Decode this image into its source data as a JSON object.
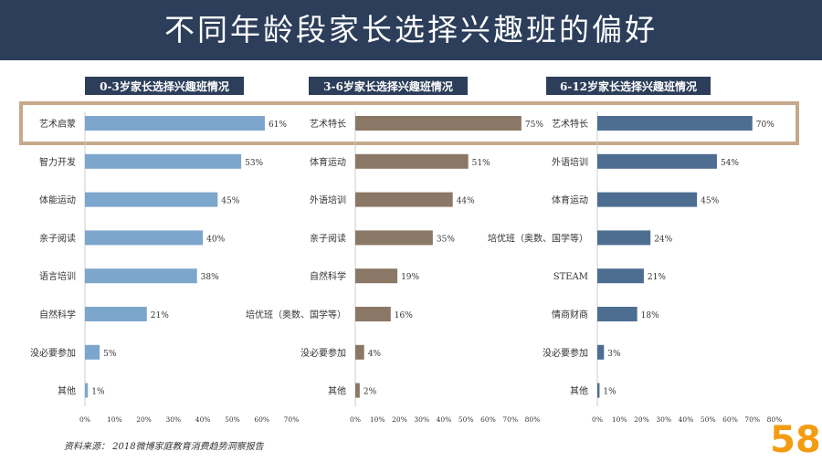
{
  "title": "不同年龄段家长选择兴趣班的偏好",
  "source": "资料来源： 2018微博家庭教育消费趋势洞察报告",
  "logo_text": "58",
  "colors": {
    "highlight": "#c6a98a",
    "axis_line": "#cccccc",
    "text": "#333333",
    "panel_title_bg": "#2c3e5a"
  },
  "chart_data": [
    {
      "type": "bar",
      "orientation": "horizontal",
      "title": "0-3岁家长选择兴趣班情况",
      "color": "#7da6cc",
      "categories": [
        "艺术启蒙",
        "智力开发",
        "体能运动",
        "亲子阅读",
        "语言培训",
        "自然科学",
        "没必要参加",
        "其他"
      ],
      "values": [
        61,
        53,
        45,
        40,
        38,
        21,
        5,
        1
      ],
      "value_labels": [
        "61%",
        "53%",
        "45%",
        "40%",
        "38%",
        "21%",
        "5%",
        "1%"
      ],
      "xlim": [
        0,
        70
      ],
      "ticks": [
        "0%",
        "10%",
        "20%",
        "30%",
        "40%",
        "50%",
        "60%",
        "70%"
      ]
    },
    {
      "type": "bar",
      "orientation": "horizontal",
      "title": "3-6岁家长选择兴趣班情况",
      "color": "#8b7765",
      "categories": [
        "艺术特长",
        "体育运动",
        "外语培训",
        "亲子阅读",
        "自然科学",
        "培优班（奥数、国学等）",
        "没必要参加",
        "其他"
      ],
      "values": [
        75,
        51,
        44,
        35,
        19,
        16,
        4,
        2
      ],
      "value_labels": [
        "75%",
        "51%",
        "44%",
        "35%",
        "19%",
        "16%",
        "4%",
        "2%"
      ],
      "xlim": [
        0,
        80
      ],
      "ticks": [
        "0%",
        "10%",
        "20%",
        "30%",
        "40%",
        "50%",
        "60%",
        "70%",
        "80%"
      ]
    },
    {
      "type": "bar",
      "orientation": "horizontal",
      "title": "6-12岁家长选择兴趣班情况",
      "color": "#4d6e91",
      "categories": [
        "艺术特长",
        "外语培训",
        "体育运动",
        "培优班（奥数、国学等）",
        "STEAM",
        "情商财商",
        "没必要参加",
        "其他"
      ],
      "values": [
        70,
        54,
        45,
        24,
        21,
        18,
        3,
        1
      ],
      "value_labels": [
        "70%",
        "54%",
        "45%",
        "24%",
        "21%",
        "18%",
        "3%",
        "1%"
      ],
      "xlim": [
        0,
        80
      ],
      "ticks": [
        "0%",
        "10%",
        "20%",
        "30%",
        "40%",
        "50%",
        "60%",
        "70%",
        "80%"
      ]
    }
  ]
}
